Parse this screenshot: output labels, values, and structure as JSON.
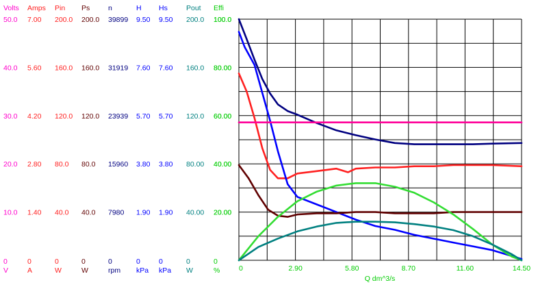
{
  "chart_data": {
    "type": "line",
    "grid": true,
    "x": {
      "label": "Q  dm^3/s",
      "ticks": [
        "0",
        "2.90",
        "5.80",
        "8.70",
        "11.60",
        "14.50"
      ],
      "range": [
        0,
        14.5
      ]
    },
    "axes": [
      {
        "name": "Volts",
        "unit": "V",
        "color": "#ff00cc",
        "ticks": [
          "0",
          "10.0",
          "20.0",
          "30.0",
          "40.0",
          "50.0"
        ],
        "range": [
          0,
          50
        ]
      },
      {
        "name": "Amps",
        "unit": "A",
        "color": "#ff2020",
        "ticks": [
          "0",
          "1.40",
          "2.80",
          "4.20",
          "5.60",
          "7.00"
        ],
        "range": [
          0,
          7
        ]
      },
      {
        "name": "Pin",
        "unit": "W",
        "color": "#ff2020",
        "ticks": [
          "0",
          "40.0",
          "80.0",
          "120.0",
          "160.0",
          "200.0"
        ],
        "range": [
          0,
          200
        ]
      },
      {
        "name": "Ps",
        "unit": "W",
        "color": "#600000",
        "ticks": [
          "0",
          "40.0",
          "80.0",
          "120.0",
          "160.0",
          "200.0"
        ],
        "range": [
          0,
          200
        ]
      },
      {
        "name": "n",
        "unit": "rpm",
        "color": "#000080",
        "ticks": [
          "0",
          "7980",
          "15960",
          "23939",
          "31919",
          "39899"
        ],
        "range": [
          0,
          39899
        ]
      },
      {
        "name": "H",
        "unit": "kPa",
        "color": "#0000ff",
        "ticks": [
          "0",
          "1.90",
          "3.80",
          "5.70",
          "7.60",
          "9.50"
        ],
        "range": [
          0,
          9.5
        ]
      },
      {
        "name": "Hs",
        "unit": "kPa",
        "color": "#0000ff",
        "ticks": [
          "0",
          "1.90",
          "3.80",
          "5.70",
          "7.60",
          "9.50"
        ],
        "range": [
          0,
          9.5
        ]
      },
      {
        "name": "Pout",
        "unit": "W",
        "color": "#008080",
        "ticks": [
          "0",
          "40.00",
          "80.00",
          "120.0",
          "160.0",
          "200.0"
        ],
        "range": [
          0,
          200
        ]
      },
      {
        "name": "Effi",
        "unit": "%",
        "color": "#00cc00",
        "ticks": [
          "0",
          "20.00",
          "40.00",
          "60.00",
          "80.00",
          "100.0"
        ],
        "range": [
          0,
          100
        ]
      }
    ],
    "inner_labels": [
      "0",
      "20.00",
      "40.00",
      "60.00",
      "80.00",
      "100.0"
    ],
    "series": [
      {
        "axis": "n",
        "color": "#000080",
        "x": [
          0,
          0.4,
          0.8,
          1.2,
          1.6,
          2.0,
          2.5,
          3.0,
          4.0,
          5.0,
          6.0,
          7.0,
          8.0,
          9.0,
          10.0,
          11.0,
          12.0,
          13.0,
          14.5
        ],
        "y": [
          39899,
          36600,
          33200,
          30000,
          27600,
          25800,
          24700,
          24100,
          22700,
          21500,
          20700,
          20000,
          19400,
          19200,
          19200,
          19200,
          19200,
          19300,
          19400
        ]
      },
      {
        "axis": "Pin",
        "color": "#ff2020",
        "x": [
          0,
          0.4,
          0.8,
          1.2,
          1.6,
          2.0,
          2.5,
          3.0,
          4.0,
          5.0,
          5.6,
          6.0,
          7.0,
          8.0,
          9.0,
          10.0,
          11.0,
          12.0,
          13.0,
          14.5
        ],
        "y": [
          155,
          140,
          118,
          93,
          75,
          68,
          68,
          72,
          74,
          76,
          73,
          76,
          77,
          77,
          78,
          78,
          79,
          79,
          79,
          78
        ]
      },
      {
        "axis": "H",
        "color": "#0000ff",
        "x": [
          0,
          0.3,
          0.8,
          1.2,
          1.6,
          2.0,
          2.5,
          3.0,
          4.0,
          5.0,
          6.0,
          7.0,
          8.0,
          9.0,
          10.0,
          11.0,
          12.0,
          13.0,
          14.5
        ],
        "y": [
          9.0,
          8.4,
          7.7,
          6.6,
          5.5,
          4.3,
          3.0,
          2.5,
          2.2,
          1.9,
          1.6,
          1.35,
          1.2,
          1.0,
          0.85,
          0.7,
          0.55,
          0.4,
          0.05
        ]
      },
      {
        "axis": "Ps",
        "color": "#600000",
        "x": [
          0,
          0.5,
          1.0,
          1.5,
          2.0,
          2.5,
          3.0,
          4.0,
          5.0,
          6.0,
          7.0,
          8.0,
          9.0,
          10.0,
          11.0,
          12.0,
          13.0,
          14.5
        ],
        "y": [
          79,
          68,
          54,
          42,
          37,
          36,
          38,
          39,
          39,
          40,
          40,
          39,
          39,
          39,
          40,
          40,
          40,
          40
        ]
      },
      {
        "axis": "Volts",
        "color": "#ff0099",
        "x": [
          0,
          14.5
        ],
        "y": [
          28.6,
          28.6
        ]
      },
      {
        "axis": "Effi",
        "color": "#33dd33",
        "x": [
          0,
          1.0,
          2.0,
          3.0,
          4.0,
          5.0,
          6.0,
          7.0,
          8.0,
          9.0,
          10.0,
          11.0,
          12.0,
          13.0,
          14.0,
          14.5
        ],
        "y": [
          0,
          10,
          18,
          24.5,
          28.5,
          31,
          32,
          32,
          30.5,
          28,
          24,
          19,
          13,
          6.5,
          1.5,
          0
        ]
      },
      {
        "axis": "Pout",
        "color": "#008080",
        "x": [
          0,
          1.0,
          2.0,
          3.0,
          4.0,
          5.0,
          6.0,
          7.0,
          8.0,
          9.0,
          10.0,
          11.0,
          12.0,
          13.0,
          14.0,
          14.5
        ],
        "y": [
          0,
          11,
          18,
          24,
          28,
          31,
          32,
          32,
          31.5,
          30,
          28,
          25,
          20,
          13,
          5,
          0
        ]
      }
    ]
  }
}
